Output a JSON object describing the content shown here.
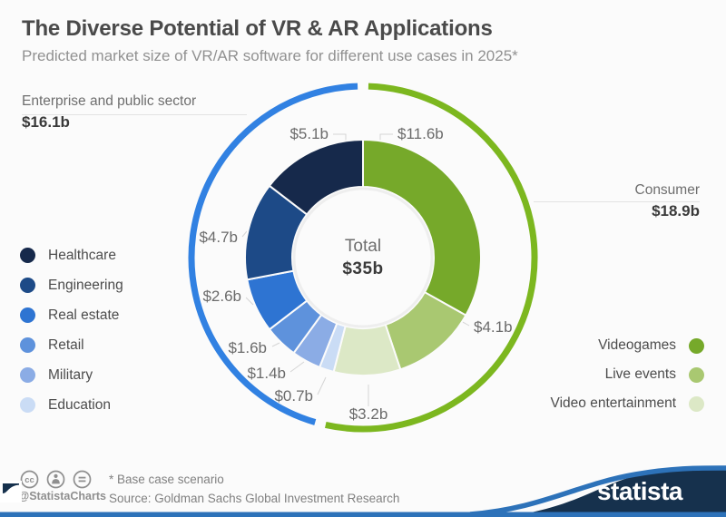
{
  "header": {
    "title": "The Diverse Potential of VR & AR Applications",
    "subtitle": "Predicted market size of VR/AR software for different use cases in 2025*"
  },
  "chart_data": {
    "type": "donut",
    "title": "Predicted market size of VR/AR software for different use cases in 2025",
    "total": 35,
    "center": {
      "label": "Total",
      "value": "$35b"
    },
    "unit": "billion USD",
    "groups": [
      {
        "name": "Consumer",
        "value": 18.9,
        "value_label": "$18.9b",
        "color": "#7cb71f"
      },
      {
        "name": "Enterprise and public sector",
        "value": 16.1,
        "value_label": "$16.1b",
        "color": "#3181e2"
      }
    ],
    "segments": [
      {
        "name": "Videogames",
        "value": 11.6,
        "label": "$11.6b",
        "color": "#76a92a",
        "group": "Consumer"
      },
      {
        "name": "Live events",
        "value": 4.1,
        "label": "$4.1b",
        "color": "#a9c871",
        "group": "Consumer"
      },
      {
        "name": "Video entertainment",
        "value": 3.2,
        "label": "$3.2b",
        "color": "#dce8c6",
        "group": "Consumer"
      },
      {
        "name": "Education",
        "value": 0.7,
        "label": "$0.7b",
        "color": "#cadcf5",
        "group": "Enterprise and public sector"
      },
      {
        "name": "Military",
        "value": 1.4,
        "label": "$1.4b",
        "color": "#8bace5",
        "group": "Enterprise and public sector"
      },
      {
        "name": "Retail",
        "value": 1.6,
        "label": "$1.6b",
        "color": "#5e92dc",
        "group": "Enterprise and public sector"
      },
      {
        "name": "Real estate",
        "value": 2.6,
        "label": "$2.6b",
        "color": "#2e74d2",
        "group": "Enterprise and public sector"
      },
      {
        "name": "Engineering",
        "value": 4.7,
        "label": "$4.7b",
        "color": "#1d4a87",
        "group": "Enterprise and public sector"
      },
      {
        "name": "Healthcare",
        "value": 5.1,
        "label": "$5.1b",
        "color": "#16294b",
        "group": "Enterprise and public sector"
      }
    ],
    "legend_left": [
      "Healthcare",
      "Engineering",
      "Real estate",
      "Retail",
      "Military",
      "Education"
    ],
    "legend_right": [
      "Videogames",
      "Live events",
      "Video entertainment"
    ]
  },
  "footer": {
    "footnote": "* Base case scenario",
    "source": "Source: Goldman Sachs Global Investment Research",
    "handle": "@StatistaCharts",
    "brand": "statista",
    "cc_icons": [
      "cc-icon",
      "attribution-person-icon",
      "equals-icon"
    ],
    "brand_navy": "#16314d",
    "brand_blue": "#2d72b9"
  }
}
